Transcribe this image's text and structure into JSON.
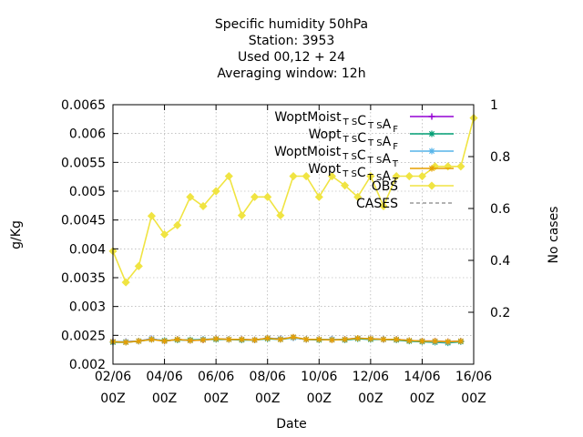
{
  "chart_data": {
    "type": "line",
    "title_lines": [
      "Specific humidity 50hPa",
      "Station:     3953",
      "Used  00,12  + 24",
      "Averaging window: 12h"
    ],
    "xlabel": "Date",
    "ylabel": "g/Kg",
    "y2label": "No cases",
    "xlim": [
      0,
      14
    ],
    "ylim": [
      0.002,
      0.0065
    ],
    "y2lim": [
      0,
      1
    ],
    "grid": true,
    "legend_position": "top-right",
    "x_ticks": [
      {
        "x": 0,
        "line1": "02/06",
        "line2": "00Z"
      },
      {
        "x": 2,
        "line1": "04/06",
        "line2": "00Z"
      },
      {
        "x": 4,
        "line1": "06/06",
        "line2": "00Z"
      },
      {
        "x": 6,
        "line1": "08/06",
        "line2": "00Z"
      },
      {
        "x": 8,
        "line1": "10/06",
        "line2": "00Z"
      },
      {
        "x": 10,
        "line1": "12/06",
        "line2": "00Z"
      },
      {
        "x": 12,
        "line1": "14/06",
        "line2": "00Z"
      },
      {
        "x": 14,
        "line1": "16/06",
        "line2": "00Z"
      }
    ],
    "y_ticks": [
      {
        "v": 0.002,
        "label": "0.002"
      },
      {
        "v": 0.0025,
        "label": "0.0025"
      },
      {
        "v": 0.003,
        "label": "0.003"
      },
      {
        "v": 0.0035,
        "label": "0.0035"
      },
      {
        "v": 0.004,
        "label": "0.004"
      },
      {
        "v": 0.0045,
        "label": "0.0045"
      },
      {
        "v": 0.005,
        "label": "0.005"
      },
      {
        "v": 0.0055,
        "label": "0.0055"
      },
      {
        "v": 0.006,
        "label": "0.006"
      },
      {
        "v": 0.0065,
        "label": "0.0065"
      }
    ],
    "y2_ticks": [
      {
        "v": 0.2,
        "label": "0.2"
      },
      {
        "v": 0.4,
        "label": "0.4"
      },
      {
        "v": 0.6,
        "label": "0.6"
      },
      {
        "v": 0.8,
        "label": "0.8"
      },
      {
        "v": 1.0,
        "label": "1"
      }
    ],
    "series": [
      {
        "main": "WoptMoist",
        "sub1": "T S",
        "mid": "C",
        "sub2": "T S",
        "tail": "A",
        "sub3": "F",
        "color": "#9400d3",
        "marker": "plus",
        "x": [
          0,
          0.5,
          1,
          1.5,
          2,
          2.5,
          3,
          3.5,
          4,
          4.5,
          5,
          5.5,
          6,
          6.5,
          7,
          7.5,
          8,
          8.5,
          9,
          9.5,
          10,
          10.5,
          11,
          11.5,
          12,
          12.5,
          13,
          13.5
        ],
        "y": [
          0.00239,
          0.00239,
          0.0024,
          0.00244,
          0.0024,
          0.00243,
          0.00241,
          0.00242,
          0.00244,
          0.00243,
          0.00243,
          0.00242,
          0.00245,
          0.00244,
          0.00246,
          0.00243,
          0.00243,
          0.00243,
          0.00243,
          0.00245,
          0.00244,
          0.00243,
          0.00243,
          0.00241,
          0.0024,
          0.0024,
          0.00239,
          0.0024
        ]
      },
      {
        "main": "Wopt",
        "sub1": "T S",
        "mid": "C",
        "sub2": "T S",
        "tail": "A",
        "sub3": "F",
        "color": "#009e73",
        "marker": "star",
        "x": [
          0,
          0.5,
          1,
          1.5,
          2,
          2.5,
          3,
          3.5,
          4,
          4.5,
          5,
          5.5,
          6,
          6.5,
          7,
          7.5,
          8,
          8.5,
          9,
          9.5,
          10,
          10.5,
          11,
          11.5,
          12,
          12.5,
          13,
          13.5
        ],
        "y": [
          0.00238,
          0.00238,
          0.0024,
          0.00243,
          0.00241,
          0.00242,
          0.00242,
          0.00243,
          0.00243,
          0.00243,
          0.00242,
          0.00242,
          0.00244,
          0.00243,
          0.00246,
          0.00243,
          0.00242,
          0.00243,
          0.00242,
          0.00244,
          0.00243,
          0.00243,
          0.00242,
          0.0024,
          0.00239,
          0.00238,
          0.00237,
          0.00239
        ]
      },
      {
        "main": "WoptMoist",
        "sub1": "T S",
        "mid": "C",
        "sub2": "T S",
        "tail": "A",
        "sub3": "T",
        "color": "#56b4e9",
        "marker": "star",
        "x": [
          0,
          0.5,
          1,
          1.5,
          2,
          2.5,
          3,
          3.5,
          4,
          4.5,
          5,
          5.5,
          6,
          6.5,
          7,
          7.5,
          8,
          8.5,
          9,
          9.5,
          10,
          10.5,
          11,
          11.5,
          12,
          12.5,
          13,
          13.5
        ],
        "y": [
          0.00239,
          0.00239,
          0.0024,
          0.00244,
          0.0024,
          0.00243,
          0.00241,
          0.00243,
          0.00244,
          0.00243,
          0.00243,
          0.00242,
          0.00245,
          0.00244,
          0.00246,
          0.00243,
          0.00243,
          0.00243,
          0.00243,
          0.00245,
          0.00244,
          0.00243,
          0.00243,
          0.00241,
          0.0024,
          0.00239,
          0.00238,
          0.0024
        ]
      },
      {
        "main": "Wopt",
        "sub1": "T S",
        "mid": "C",
        "sub2": "T S",
        "tail": "A",
        "sub3": "T",
        "color": "#e69f00",
        "marker": "star",
        "x": [
          0,
          0.5,
          1,
          1.5,
          2,
          2.5,
          3,
          3.5,
          4,
          4.5,
          5,
          5.5,
          6,
          6.5,
          7,
          7.5,
          8,
          8.5,
          9,
          9.5,
          10,
          10.5,
          11,
          11.5,
          12,
          12.5,
          13,
          13.5
        ],
        "y": [
          0.00239,
          0.00238,
          0.0024,
          0.00243,
          0.0024,
          0.00243,
          0.00241,
          0.00242,
          0.00244,
          0.00243,
          0.00243,
          0.00242,
          0.00245,
          0.00243,
          0.00247,
          0.00243,
          0.00243,
          0.00242,
          0.00243,
          0.00245,
          0.00244,
          0.00243,
          0.00243,
          0.00241,
          0.0024,
          0.0024,
          0.00239,
          0.0024
        ]
      },
      {
        "main": "OBS",
        "sub1": "",
        "mid": "",
        "sub2": "",
        "tail": "",
        "sub3": "",
        "color": "#f0e442",
        "marker": "diamond",
        "x": [
          0,
          0.5,
          1,
          1.5,
          2,
          2.5,
          3,
          3.5,
          4,
          4.5,
          5,
          5.5,
          6,
          6.5,
          7,
          7.5,
          8,
          8.5,
          9,
          9.5,
          10,
          10.5,
          11,
          11.5,
          12,
          12.5,
          13,
          13.5,
          14
        ],
        "y": [
          0.00396,
          0.00342,
          0.0037,
          0.00457,
          0.00425,
          0.00441,
          0.0049,
          0.00474,
          0.005,
          0.00526,
          0.00458,
          0.0049,
          0.0049,
          0.00458,
          0.00526,
          0.00526,
          0.0049,
          0.00526,
          0.0051,
          0.0049,
          0.00526,
          0.00474,
          0.00526,
          0.00526,
          0.00526,
          0.00543,
          0.00543,
          0.00543,
          0.00627
        ]
      },
      {
        "main": "CASES",
        "sub1": "",
        "mid": "",
        "sub2": "",
        "tail": "",
        "sub3": "",
        "color": "#999999",
        "marker": "none",
        "dashed": true,
        "x": [],
        "y": []
      }
    ]
  }
}
